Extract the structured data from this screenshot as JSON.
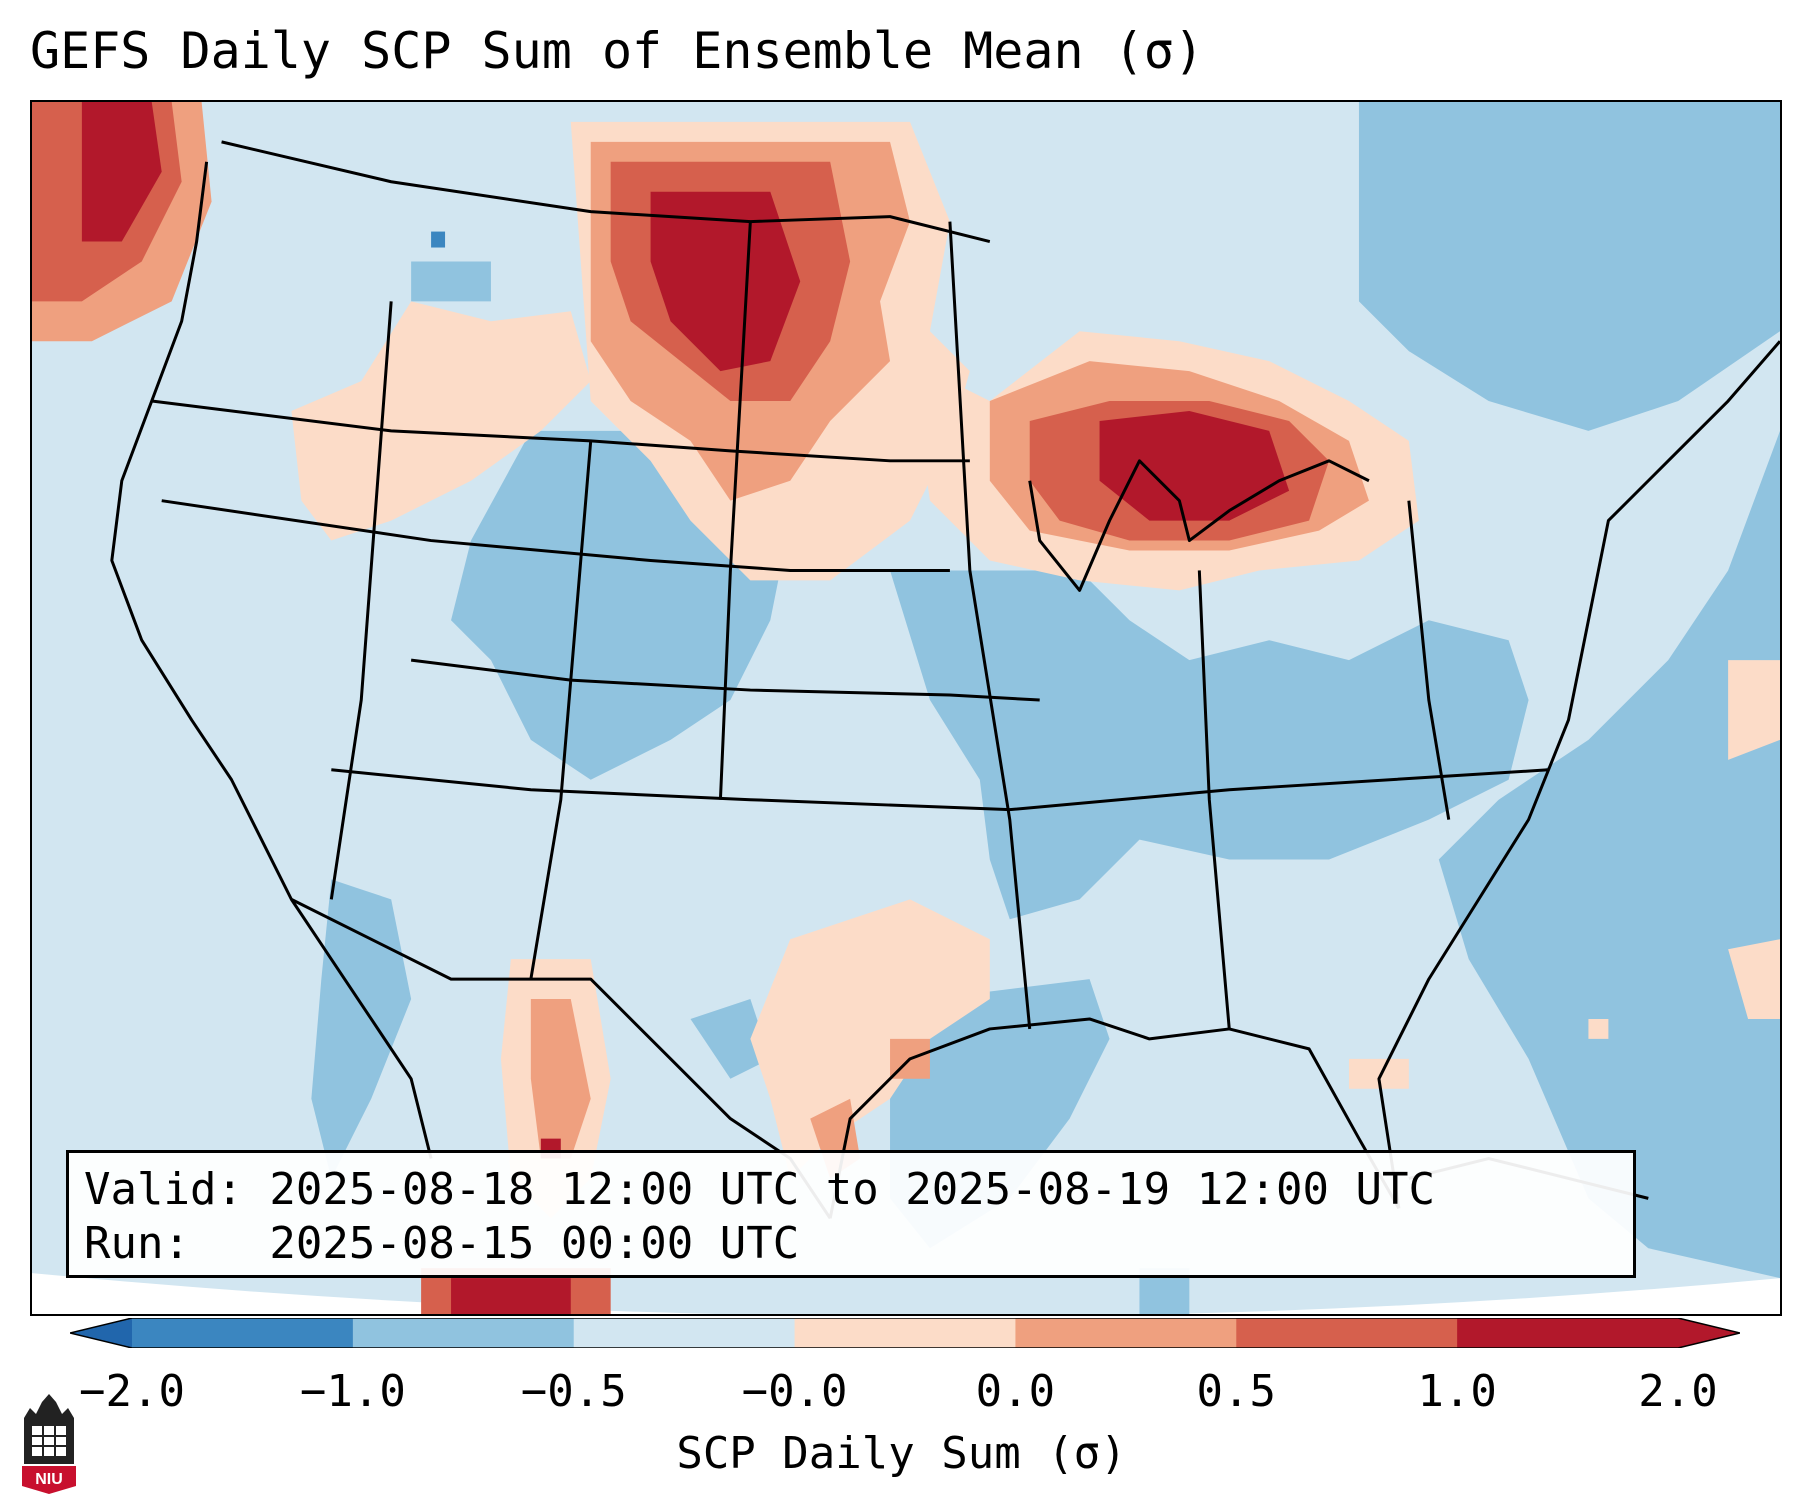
{
  "title": "GEFS Daily SCP Sum of Ensemble Mean (σ)",
  "info": {
    "valid_line": "Valid: 2025-08-18 12:00 UTC to 2025-08-19 12:00 UTC",
    "run_line": "Run:   2025-08-15 00:00 UTC"
  },
  "colorbar": {
    "label": "SCP Daily Sum (σ)",
    "ticks": [
      "−2.0",
      "−1.0",
      "−0.5",
      "−0.0",
      "0.0",
      "0.5",
      "1.0",
      "2.0"
    ],
    "colors": [
      "#3b86c0",
      "#90c3df",
      "#d2e6f1",
      "#fcdcc8",
      "#efa07f",
      "#d6604d",
      "#b2182b"
    ],
    "extend_low_color": "#2166ac",
    "extend_high_color": "#b2182b"
  },
  "map": {
    "background_color": "#d2e6f1",
    "anomaly_regions": [
      {
        "name": "northern-plains-positive",
        "category": "strong-positive"
      },
      {
        "name": "great-lakes-positive",
        "category": "strong-positive"
      },
      {
        "name": "pacific-northwest-positive",
        "category": "strong-positive"
      },
      {
        "name": "southern-plains-weak-positive",
        "category": "weak-positive"
      },
      {
        "name": "mexico-positive",
        "category": "moderate-positive"
      },
      {
        "name": "central-negative",
        "category": "negative"
      },
      {
        "name": "atlantic-negative",
        "category": "negative"
      },
      {
        "name": "gulf-negative",
        "category": "negative"
      }
    ]
  },
  "logo": {
    "text": "NIU"
  }
}
